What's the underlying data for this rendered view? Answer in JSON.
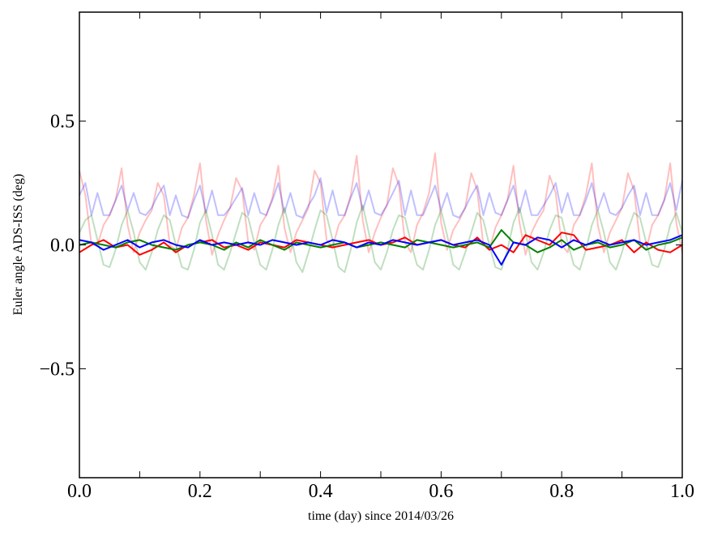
{
  "chart_data": {
    "type": "line",
    "title": "",
    "xlabel": "time (day) since 2014/03/26",
    "ylabel": "Euler angle ADS-ISS (deg)",
    "xlim": [
      0.0,
      1.0
    ],
    "ylim": [
      -0.94,
      0.94
    ],
    "grid": false,
    "legend": "none",
    "xticks": [
      0.0,
      0.2,
      0.4,
      0.6,
      0.8,
      1.0
    ],
    "xtick_labels": [
      "0.0",
      "0.2",
      "0.4",
      "0.6",
      "0.8",
      "1.0"
    ],
    "yticks": [
      -0.5,
      0.0,
      0.5
    ],
    "ytick_labels": [
      "−0.5",
      "0.0",
      "0.5"
    ],
    "series": [
      {
        "color": "#ff0000",
        "alpha": 0.25,
        "x_start": 0.0,
        "x_step": 0.01,
        "values": [
          0.3,
          0.2,
          0.0,
          0.0,
          0.08,
          0.12,
          0.18,
          0.31,
          0.08,
          -0.03,
          0.05,
          0.1,
          0.14,
          0.25,
          0.2,
          0.0,
          -0.02,
          0.07,
          0.11,
          0.2,
          0.33,
          0.1,
          -0.04,
          0.04,
          0.1,
          0.15,
          0.27,
          0.22,
          0.01,
          -0.02,
          0.08,
          0.12,
          0.19,
          0.32,
          0.07,
          -0.03,
          0.05,
          0.1,
          0.15,
          0.3,
          0.25,
          0.02,
          -0.01,
          0.08,
          0.12,
          0.2,
          0.36,
          0.1,
          -0.03,
          0.05,
          0.11,
          0.16,
          0.31,
          0.24,
          0.01,
          -0.03,
          0.08,
          0.13,
          0.21,
          0.37,
          0.09,
          -0.02,
          0.06,
          0.1,
          0.15,
          0.29,
          0.22,
          0.0,
          -0.02,
          0.07,
          0.12,
          0.18,
          0.32,
          0.09,
          -0.04,
          0.05,
          0.1,
          0.14,
          0.28,
          0.21,
          0.0,
          -0.03,
          0.08,
          0.12,
          0.2,
          0.33,
          0.08,
          -0.03,
          0.05,
          0.1,
          0.15,
          0.29,
          0.22,
          0.01,
          -0.02,
          0.08,
          0.12,
          0.18,
          0.33,
          0.09,
          -0.03
        ]
      },
      {
        "color": "#0000ff",
        "alpha": 0.25,
        "x_start": 0.0,
        "x_step": 0.01,
        "values": [
          0.2,
          0.25,
          0.12,
          0.21,
          0.12,
          0.12,
          0.18,
          0.24,
          0.14,
          0.21,
          0.13,
          0.12,
          0.15,
          0.2,
          0.24,
          0.12,
          0.2,
          0.12,
          0.11,
          0.18,
          0.24,
          0.13,
          0.22,
          0.12,
          0.12,
          0.15,
          0.19,
          0.23,
          0.12,
          0.21,
          0.13,
          0.12,
          0.18,
          0.25,
          0.13,
          0.21,
          0.12,
          0.11,
          0.16,
          0.2,
          0.27,
          0.13,
          0.22,
          0.12,
          0.12,
          0.19,
          0.25,
          0.14,
          0.22,
          0.13,
          0.12,
          0.16,
          0.21,
          0.26,
          0.12,
          0.22,
          0.12,
          0.12,
          0.18,
          0.24,
          0.14,
          0.21,
          0.12,
          0.11,
          0.15,
          0.2,
          0.24,
          0.12,
          0.21,
          0.13,
          0.12,
          0.18,
          0.24,
          0.13,
          0.22,
          0.12,
          0.12,
          0.16,
          0.2,
          0.25,
          0.13,
          0.21,
          0.12,
          0.12,
          0.18,
          0.25,
          0.14,
          0.21,
          0.13,
          0.12,
          0.15,
          0.2,
          0.24,
          0.12,
          0.21,
          0.12,
          0.12,
          0.18,
          0.25,
          0.14,
          0.26
        ]
      },
      {
        "color": "#008000",
        "alpha": 0.25,
        "x_start": 0.0,
        "x_step": 0.01,
        "values": [
          0.05,
          0.1,
          0.12,
          0.02,
          -0.08,
          -0.09,
          -0.02,
          0.08,
          0.14,
          0.05,
          -0.07,
          -0.1,
          -0.03,
          0.06,
          0.12,
          0.1,
          0.0,
          -0.09,
          -0.1,
          -0.02,
          0.09,
          0.14,
          0.04,
          -0.08,
          -0.1,
          -0.03,
          0.05,
          0.13,
          0.11,
          0.01,
          -0.08,
          -0.1,
          -0.02,
          0.08,
          0.15,
          0.05,
          -0.07,
          -0.11,
          -0.03,
          0.06,
          0.14,
          0.12,
          0.02,
          -0.09,
          -0.11,
          -0.02,
          0.09,
          0.16,
          0.05,
          -0.07,
          -0.1,
          -0.03,
          0.06,
          0.12,
          0.11,
          0.01,
          -0.08,
          -0.1,
          -0.02,
          0.08,
          0.14,
          0.04,
          -0.08,
          -0.1,
          -0.03,
          0.05,
          0.13,
          0.1,
          0.0,
          -0.09,
          -0.1,
          -0.02,
          0.09,
          0.15,
          0.05,
          -0.07,
          -0.1,
          -0.03,
          0.06,
          0.12,
          0.11,
          0.01,
          -0.08,
          -0.1,
          -0.02,
          0.08,
          0.14,
          0.05,
          -0.07,
          -0.1,
          -0.03,
          0.06,
          0.13,
          0.11,
          0.01,
          -0.08,
          -0.09,
          -0.02,
          0.08,
          0.13,
          0.05
        ]
      },
      {
        "color": "#ff0000",
        "alpha": 1.0,
        "x_start": 0.0,
        "x_step": 0.02,
        "values": [
          -0.03,
          0.0,
          0.02,
          -0.01,
          0.0,
          -0.04,
          -0.02,
          0.01,
          -0.03,
          0.0,
          0.01,
          0.02,
          -0.01,
          0.0,
          -0.02,
          0.01,
          0.0,
          -0.01,
          0.02,
          0.01,
          0.0,
          -0.01,
          0.0,
          0.01,
          0.02,
          0.0,
          0.01,
          0.03,
          0.0,
          0.01,
          0.02,
          0.0,
          -0.01,
          0.03,
          -0.02,
          0.0,
          -0.03,
          0.04,
          0.02,
          0.0,
          0.05,
          0.04,
          -0.02,
          -0.01,
          0.0,
          0.02,
          -0.03,
          0.01,
          -0.02,
          -0.03,
          0.0
        ]
      },
      {
        "color": "#008000",
        "alpha": 1.0,
        "x_start": 0.0,
        "x_step": 0.02,
        "values": [
          0.0,
          0.01,
          0.0,
          -0.01,
          0.01,
          0.02,
          0.0,
          -0.01,
          -0.02,
          0.0,
          0.01,
          0.0,
          -0.02,
          0.01,
          -0.01,
          0.02,
          0.0,
          -0.02,
          0.01,
          0.0,
          -0.01,
          0.0,
          0.01,
          -0.01,
          0.0,
          0.01,
          0.0,
          -0.01,
          0.02,
          0.01,
          0.0,
          -0.01,
          0.0,
          0.01,
          -0.01,
          0.06,
          0.01,
          0.0,
          -0.03,
          -0.01,
          0.02,
          -0.02,
          0.0,
          0.01,
          -0.01,
          0.0,
          0.02,
          -0.02,
          0.0,
          0.01,
          0.03
        ]
      },
      {
        "color": "#0000ff",
        "alpha": 1.0,
        "x_start": 0.0,
        "x_step": 0.02,
        "values": [
          0.02,
          0.01,
          -0.02,
          0.0,
          0.02,
          -0.01,
          0.01,
          0.02,
          0.0,
          -0.01,
          0.02,
          0.0,
          0.01,
          0.0,
          0.01,
          0.0,
          0.02,
          0.01,
          0.0,
          0.01,
          0.0,
          0.02,
          0.01,
          -0.01,
          0.01,
          0.0,
          0.02,
          0.01,
          0.0,
          0.01,
          0.02,
          0.0,
          0.01,
          0.02,
          0.0,
          -0.08,
          0.01,
          0.0,
          0.03,
          0.02,
          -0.01,
          0.02,
          0.0,
          0.02,
          0.0,
          0.01,
          0.02,
          0.0,
          0.01,
          0.02,
          0.04
        ]
      }
    ]
  }
}
